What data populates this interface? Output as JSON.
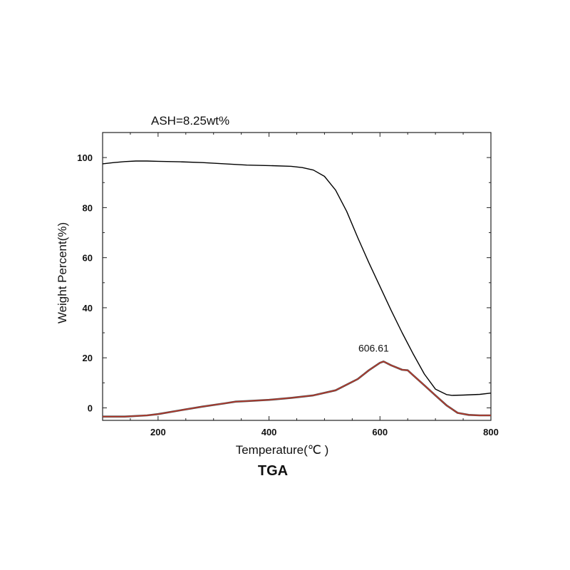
{
  "chart_data": {
    "type": "line",
    "ash_label": "ASH=8.25wt%",
    "caption": "TGA",
    "xlabel": "Temperature(℃ )",
    "ylabel": "Weight Percent(%)",
    "xlim": [
      100,
      800
    ],
    "ylim": [
      -5,
      110
    ],
    "xticks": [
      200,
      400,
      600,
      800
    ],
    "yticks": [
      0,
      20,
      40,
      60,
      80,
      100
    ],
    "grid": false,
    "colors": {
      "weight": "#000000",
      "derivative": "#c0392b",
      "derivative_edge": "#444444"
    },
    "series": [
      {
        "key": "weight",
        "x": [
          100,
          120,
          140,
          160,
          180,
          200,
          240,
          280,
          320,
          360,
          400,
          440,
          460,
          480,
          500,
          520,
          540,
          560,
          580,
          600,
          620,
          640,
          660,
          680,
          700,
          720,
          730,
          750,
          780,
          800
        ],
        "y": [
          97.5,
          98.0,
          98.4,
          98.6,
          98.6,
          98.5,
          98.3,
          98.0,
          97.5,
          97.0,
          96.8,
          96.5,
          96.0,
          95.0,
          92.5,
          87.0,
          78.5,
          68.0,
          58.0,
          48.5,
          39.0,
          30.0,
          21.5,
          13.5,
          7.5,
          5.3,
          5.0,
          5.1,
          5.4,
          5.9
        ]
      },
      {
        "key": "derivative",
        "x": [
          100,
          140,
          180,
          200,
          240,
          280,
          320,
          340,
          360,
          400,
          440,
          480,
          520,
          560,
          580,
          600,
          606.61,
          620,
          640,
          650,
          660,
          680,
          700,
          720,
          740,
          760,
          780,
          800
        ],
        "y": [
          -3.5,
          -3.5,
          -3.0,
          -2.5,
          -1.0,
          0.5,
          1.8,
          2.5,
          2.7,
          3.2,
          4.0,
          5.0,
          7.0,
          11.5,
          15.0,
          18.0,
          18.5,
          17.0,
          15.2,
          15.0,
          13.0,
          9.0,
          5.0,
          1.0,
          -2.0,
          -2.8,
          -3.0,
          -3.0
        ]
      }
    ],
    "annotations": [
      {
        "text": "606.61",
        "x": 606.61,
        "y": 18.5
      }
    ]
  }
}
